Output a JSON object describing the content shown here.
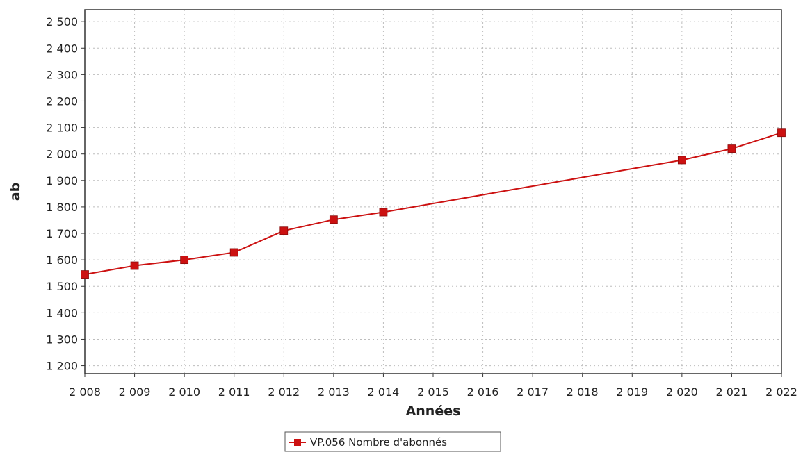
{
  "chart_data": {
    "type": "line",
    "xlabel": "Années",
    "ylabel": "ab",
    "x_ticks": [
      "2 008",
      "2 009",
      "2 010",
      "2 011",
      "2 012",
      "2 013",
      "2 014",
      "2 015",
      "2 016",
      "2 017",
      "2 018",
      "2 019",
      "2 020",
      "2 021",
      "2 022"
    ],
    "y_ticks": [
      "1 200",
      "1 300",
      "1 400",
      "1 500",
      "1 600",
      "1 700",
      "1 800",
      "1 900",
      "2 000",
      "2 100",
      "2 200",
      "2 300",
      "2 400",
      "2 500"
    ],
    "xlim": [
      2008,
      2022
    ],
    "ylim": [
      1170,
      2545
    ],
    "grid": true,
    "legend_position": "bottom-center",
    "series": [
      {
        "name": "VP.056 Nombre d'abonnés",
        "color": "#cc1111",
        "marker": "square",
        "x": [
          2008,
          2009,
          2010,
          2011,
          2012,
          2013,
          2014,
          2020,
          2021,
          2022
        ],
        "y": [
          1545,
          1578,
          1600,
          1628,
          1710,
          1752,
          1780,
          1977,
          2020,
          2080
        ]
      }
    ]
  }
}
